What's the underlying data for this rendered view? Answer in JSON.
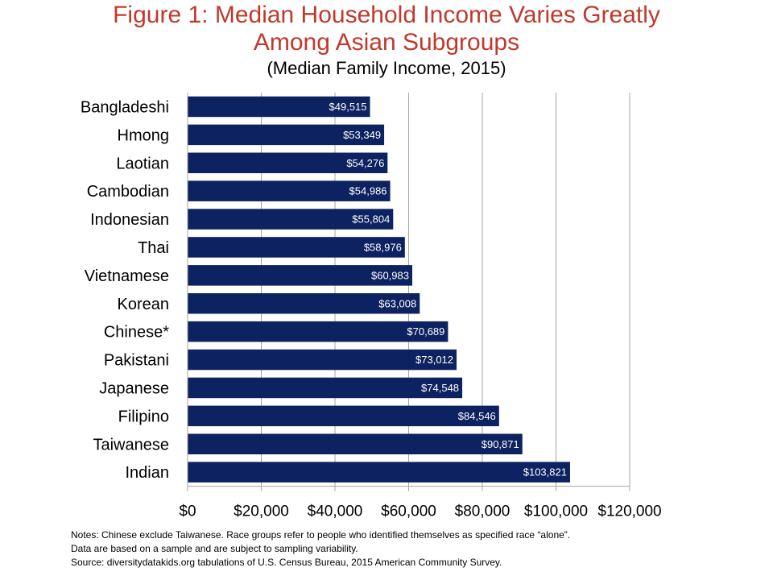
{
  "title_line1": "Figure 1:  Median Household Income Varies Greatly",
  "title_line2": "Among Asian Subgroups",
  "subtitle": "(Median Family Income, 2015)",
  "colors": {
    "title": "#c0392b",
    "bar": "#0d2260",
    "grid": "#a6a6a6"
  },
  "chart_data": {
    "type": "bar",
    "orientation": "horizontal",
    "categories": [
      "Bangladeshi",
      "Hmong",
      "Laotian",
      "Cambodian",
      "Indonesian",
      "Thai",
      "Vietnamese",
      "Korean",
      "Chinese*",
      "Pakistani",
      "Japanese",
      "Filipino",
      "Taiwanese",
      "Indian"
    ],
    "values": [
      49515,
      53349,
      54276,
      54986,
      55804,
      58976,
      60983,
      63008,
      70689,
      73012,
      74548,
      84546,
      90871,
      103821
    ],
    "data_labels": [
      "$49,515",
      "$53,349",
      "$54,276",
      "$54,986",
      "$55,804",
      "$58,976",
      "$60,983",
      "$63,008",
      "$70,689",
      "$73,012",
      "$74,548",
      "$84,546",
      "$90,871",
      "$103,821"
    ],
    "x_ticks": [
      0,
      20000,
      40000,
      60000,
      80000,
      100000,
      120000
    ],
    "x_tick_labels": [
      "$0",
      "$20,000",
      "$40,000",
      "$60,000",
      "$80,000",
      "$100,000",
      "$120,000"
    ],
    "xlim": [
      0,
      120000
    ],
    "grid": true,
    "legend": "none"
  },
  "notes": [
    "Notes:  Chinese exclude Taiwanese. Race groups refer to people who identified themselves as specified race “alone”.",
    "Data are based on a sample and are subject to sampling variability.",
    "Source:  diversitydatakids.org tabulations of U.S. Census Bureau, 2015 American Community Survey."
  ]
}
